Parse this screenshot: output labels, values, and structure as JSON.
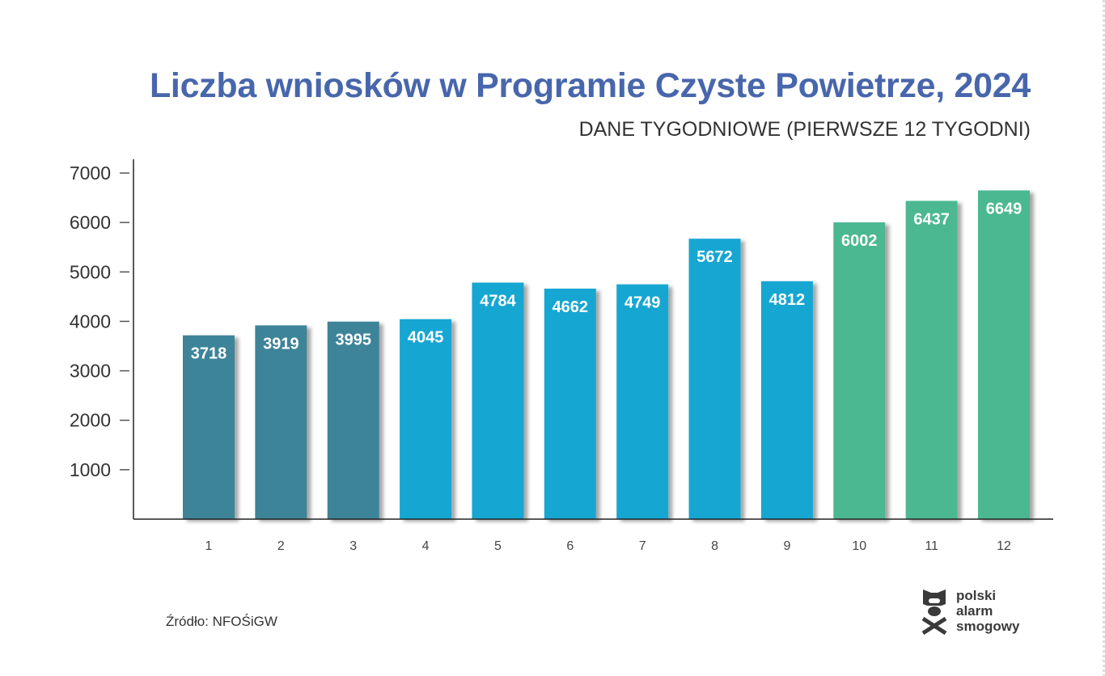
{
  "chart_data": {
    "type": "bar",
    "title": "Liczba wniosków w Programie Czyste Powietrze, 2024",
    "subtitle": "DANE TYGODNIOWE (PIERWSZE 12 TYGODNI)",
    "xlabel": "",
    "ylabel": "",
    "categories": [
      "1",
      "2",
      "3",
      "4",
      "5",
      "6",
      "7",
      "8",
      "9",
      "10",
      "11",
      "12"
    ],
    "values": [
      3718,
      3919,
      3995,
      4045,
      4784,
      4662,
      4749,
      5672,
      4812,
      6002,
      6437,
      6649
    ],
    "bar_colors": [
      "#3e8499",
      "#3e8499",
      "#3e8499",
      "#15a6d2",
      "#15a6d2",
      "#15a6d2",
      "#15a6d2",
      "#15a6d2",
      "#15a6d2",
      "#4bb892",
      "#4bb892",
      "#4bb892"
    ],
    "yticks": [
      1000,
      2000,
      3000,
      4000,
      5000,
      6000,
      7000
    ],
    "ylim": [
      0,
      7000
    ],
    "grid": false,
    "data_labels": true
  },
  "source": "Źródło: NFOŚiGW",
  "logo": {
    "lines": [
      "polski",
      "alarm",
      "smogowy"
    ],
    "icon": "smog-mask-icon"
  }
}
